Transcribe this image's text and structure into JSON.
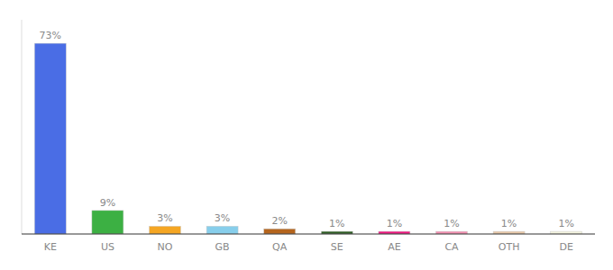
{
  "chart_data": {
    "type": "bar",
    "categories": [
      "KE",
      "US",
      "NO",
      "GB",
      "QA",
      "SE",
      "AE",
      "CA",
      "OTH",
      "DE"
    ],
    "values": [
      73,
      9,
      3,
      3,
      2,
      1,
      1,
      1,
      1,
      1
    ],
    "value_labels": [
      "73%",
      "9%",
      "3%",
      "3%",
      "2%",
      "1%",
      "1%",
      "1%",
      "1%",
      "1%"
    ],
    "colors": [
      "#4a6de5",
      "#3cb043",
      "#f5a623",
      "#87ceeb",
      "#b5651d",
      "#2e5e24",
      "#f01680",
      "#f48fb1",
      "#e8c8a8",
      "#f5f5e0"
    ],
    "ylim": [
      0,
      82
    ],
    "data_labels": true,
    "tick_labels": "x",
    "grid": false
  }
}
